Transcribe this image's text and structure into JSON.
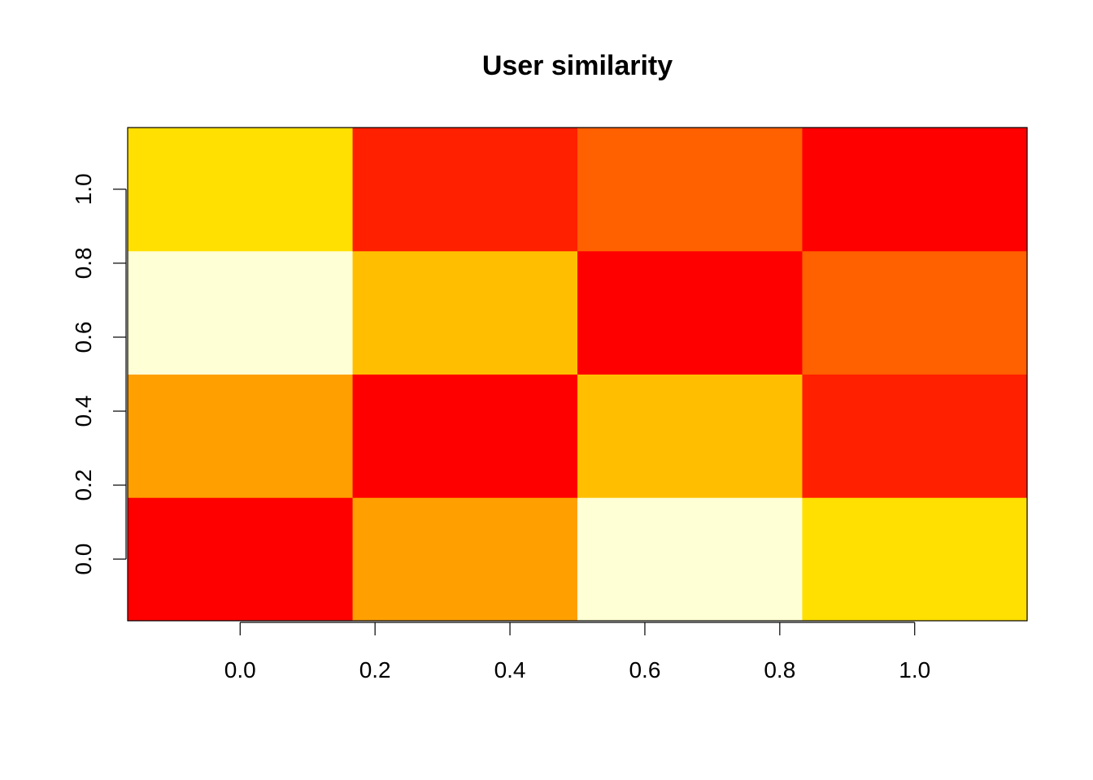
{
  "chart_data": {
    "type": "heatmap",
    "title": "User similarity",
    "xlabel": "",
    "ylabel": "",
    "xlim": [
      -0.1667,
      1.1667
    ],
    "ylim": [
      -0.1667,
      1.1667
    ],
    "x_ticks": [
      0.0,
      0.2,
      0.4,
      0.6,
      0.8,
      1.0
    ],
    "x_tick_labels": [
      "0.0",
      "0.2",
      "0.4",
      "0.6",
      "0.8",
      "1.0"
    ],
    "y_ticks": [
      0.0,
      0.2,
      0.4,
      0.6,
      0.8,
      1.0
    ],
    "y_tick_labels": [
      "0.0",
      "0.2",
      "0.4",
      "0.6",
      "0.8",
      "1.0"
    ],
    "x_cell_edges": [
      -0.1667,
      0.1667,
      0.5,
      0.8333,
      1.1667
    ],
    "y_cell_edges": [
      -0.1667,
      0.1667,
      0.5,
      0.8333,
      1.1667
    ],
    "palette": "heat.colors",
    "matrix_rows_bottom_to_top": [
      [
        0.0,
        0.67,
        1.0,
        0.83
      ],
      [
        0.67,
        0.0,
        0.75,
        0.08
      ],
      [
        1.0,
        0.75,
        0.0,
        0.33
      ],
      [
        0.83,
        0.08,
        0.33,
        0.0
      ]
    ],
    "cell_colors_rows_bottom_to_top": [
      [
        "#FF0000",
        "#FFA000",
        "#FFFFD5",
        "#FFE000"
      ],
      [
        "#FFA000",
        "#FF0000",
        "#FFBF00",
        "#FF2000"
      ],
      [
        "#FFFFD5",
        "#FFBF00",
        "#FF0000",
        "#FF6000"
      ],
      [
        "#FFE000",
        "#FF2000",
        "#FF6000",
        "#FF0000"
      ]
    ]
  }
}
